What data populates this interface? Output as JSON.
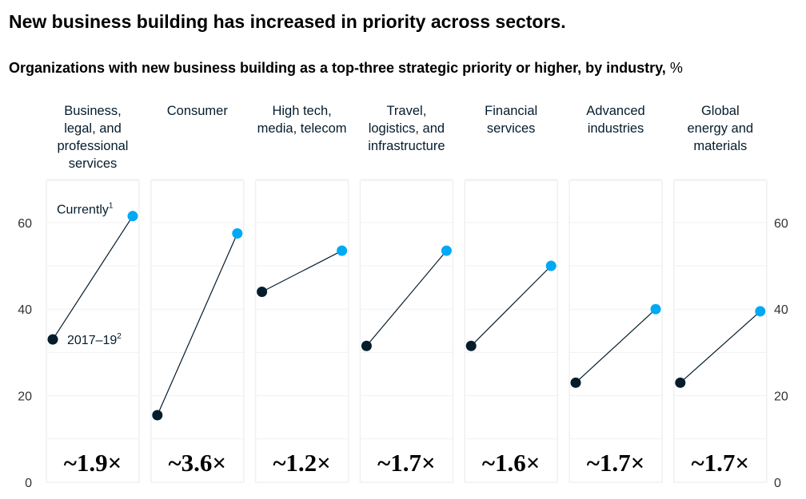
{
  "title": "New business building has increased in priority across sectors.",
  "subtitle_bold": "Organizations with new business building as a top-three strategic priority or higher, by industry,",
  "subtitle_unit": "%",
  "colors": {
    "before": "#051c2c",
    "current": "#00a9f4",
    "line": "#051c2c",
    "panel": "#f0f0f0",
    "grid": "#f1f1f1"
  },
  "chart_data": {
    "type": "line",
    "yticks": [
      0,
      20,
      40,
      60
    ],
    "ylim": [
      0,
      70
    ],
    "grid": true,
    "series_labels": {
      "before": "2017–19",
      "before_note": "2",
      "current": "Currently",
      "current_note": "1"
    },
    "categories": [
      {
        "label": [
          "Business,",
          "legal, and",
          "professional",
          "services"
        ],
        "before": 33,
        "current": 61.5,
        "multiplier": "~1.9×"
      },
      {
        "label": [
          "Consumer"
        ],
        "before": 15.5,
        "current": 57.5,
        "multiplier": "~3.6×"
      },
      {
        "label": [
          "High tech,",
          "media, telecom"
        ],
        "before": 44,
        "current": 53.5,
        "multiplier": "~1.2×"
      },
      {
        "label": [
          "Travel,",
          "logistics, and",
          "infrastructure"
        ],
        "before": 31.5,
        "current": 53.5,
        "multiplier": "~1.7×"
      },
      {
        "label": [
          "Financial",
          "services"
        ],
        "before": 31.5,
        "current": 50,
        "multiplier": "~1.6×"
      },
      {
        "label": [
          "Advanced",
          "industries"
        ],
        "before": 23,
        "current": 40,
        "multiplier": "~1.7×"
      },
      {
        "label": [
          "Global",
          "energy and",
          "materials"
        ],
        "before": 23,
        "current": 39.5,
        "multiplier": "~1.7×"
      }
    ]
  }
}
